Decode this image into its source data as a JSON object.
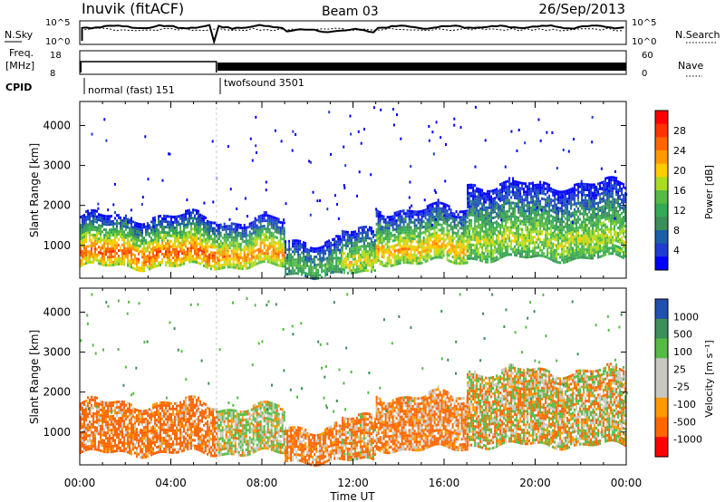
{
  "header": {
    "station": "Inuvik (fitACF)",
    "beam": "Beam 03",
    "date": "26/Sep/2013"
  },
  "top_panels": {
    "nsky_label": "N.Sky",
    "nsky_ticks": [
      "10^5",
      "10^0"
    ],
    "nsearch_label": "N.Search",
    "nsearch_ticks": [
      "10^5",
      "10^0"
    ],
    "freq_label_1": "Freq.",
    "freq_label_2": "[MHz]",
    "freq_ticks": [
      "18",
      "8"
    ],
    "nave_label": "Nave",
    "nave_ticks": [
      "60",
      "0"
    ],
    "cpid_label": "CPID",
    "cpid_modes": [
      {
        "name": "normal (fast) 151",
        "start_hour": 0.0
      },
      {
        "name": "twofsound 3501",
        "start_hour": 6.0
      }
    ]
  },
  "axes": {
    "x_label": "Time UT",
    "x_ticks": [
      "00:00",
      "04:00",
      "08:00",
      "12:00",
      "16:00",
      "20:00",
      "00:00"
    ],
    "y_label": "Slant Range [km]",
    "y_ticks": [
      "1000",
      "2000",
      "3000",
      "4000"
    ]
  },
  "colorbars": {
    "power": {
      "label": "Power [dB]",
      "ticks": [
        "28",
        "24",
        "20",
        "16",
        "12",
        "8",
        "4"
      ],
      "colors": [
        "#ff0000",
        "#ff3300",
        "#ff6600",
        "#ff9900",
        "#ffcc00",
        "#aadd22",
        "#55bb44",
        "#33aa55",
        "#3c8f5a",
        "#1a5fa8",
        "#1e3cd0",
        "#0000ff"
      ]
    },
    "velocity": {
      "label": "Velocity [m s⁻¹]",
      "ticks": [
        "1000",
        "500",
        "100",
        "25",
        "-25",
        "-100",
        "-500",
        "-1000"
      ],
      "colors": [
        "#2050b0",
        "#3c8f5a",
        "#55bb44",
        "#c8c8c0",
        "#c8c8c0",
        "#ff9900",
        "#ff6600",
        "#ff0000"
      ]
    }
  },
  "chart_data": [
    {
      "type": "heatmap",
      "name": "power",
      "x_range_hours": [
        0,
        24
      ],
      "y_range_km": [
        180,
        4600
      ],
      "colorbar_range_db": [
        0,
        32
      ],
      "bands": [
        {
          "start_h": 0.0,
          "end_h": 6.0,
          "low_km": 450,
          "high_km": 1700,
          "core_db": 26
        },
        {
          "start_h": 6.0,
          "end_h": 9.0,
          "low_km": 450,
          "high_km": 1600,
          "core_db": 24
        },
        {
          "start_h": 9.0,
          "end_h": 11.5,
          "low_km": 250,
          "high_km": 1100,
          "core_db": 14
        },
        {
          "start_h": 11.5,
          "end_h": 13.0,
          "low_km": 250,
          "high_km": 1300,
          "core_db": 20
        },
        {
          "start_h": 13.0,
          "end_h": 17.0,
          "low_km": 550,
          "high_km": 1900,
          "core_db": 22
        },
        {
          "start_h": 17.0,
          "end_h": 24.0,
          "low_km": 650,
          "high_km": 2500,
          "core_db": 18
        }
      ]
    },
    {
      "type": "heatmap",
      "name": "velocity",
      "x_range_hours": [
        0,
        24
      ],
      "y_range_km": [
        180,
        4600
      ],
      "colorbar_range_ms": [
        -1000,
        1000
      ],
      "bands": [
        {
          "start_h": 0.0,
          "end_h": 6.0,
          "low_km": 450,
          "high_km": 1700,
          "core_ms": -200
        },
        {
          "start_h": 6.0,
          "end_h": 9.0,
          "low_km": 450,
          "high_km": 1600,
          "core_ms": 80
        },
        {
          "start_h": 9.0,
          "end_h": 11.5,
          "low_km": 250,
          "high_km": 1100,
          "core_ms": -150
        },
        {
          "start_h": 11.5,
          "end_h": 13.0,
          "low_km": 250,
          "high_km": 1300,
          "core_ms": -100
        },
        {
          "start_h": 13.0,
          "end_h": 17.0,
          "low_km": 550,
          "high_km": 1900,
          "core_ms": -150
        },
        {
          "start_h": 17.0,
          "end_h": 24.0,
          "low_km": 650,
          "high_km": 2500,
          "core_ms": 0
        }
      ]
    }
  ]
}
